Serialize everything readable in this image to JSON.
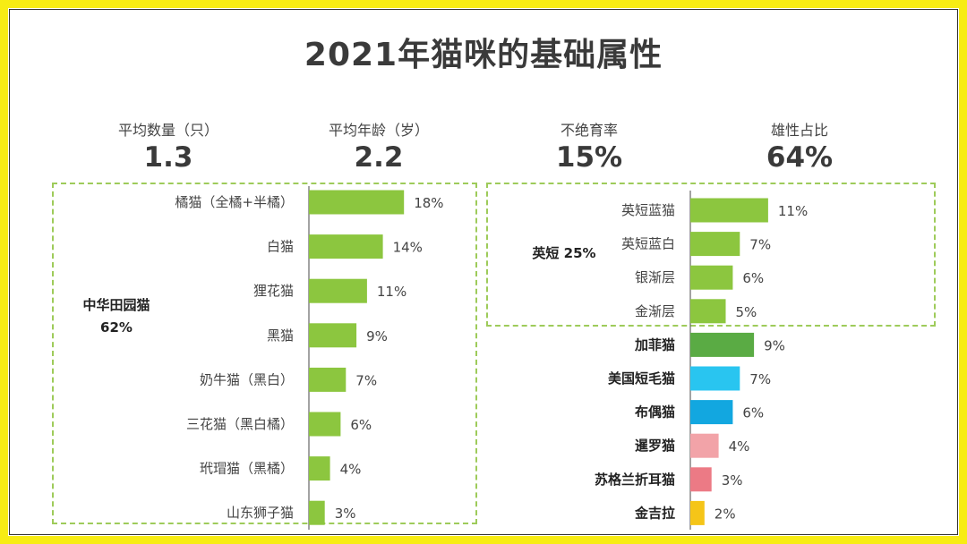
{
  "title": "2021年猫咪的基础属性",
  "stats": [
    {
      "label": "平均数量（只）",
      "value": "1.3"
    },
    {
      "label": "平均年龄（岁）",
      "value": "2.2"
    },
    {
      "label": "不绝育率",
      "value": "15%"
    },
    {
      "label": "雄性占比",
      "value": "64%"
    }
  ],
  "group_labels": {
    "left_name": "中华田园猫",
    "left_pct": "62%",
    "right_name": "英短 25%"
  },
  "colors": {
    "frame": "#f7ec14",
    "dash": "#9ecb5a",
    "green": "#8cc63f",
    "dark_green": "#5aab44",
    "light_blue": "#29c5f0",
    "blue": "#12a7e0",
    "pink": "#f2a3a8",
    "red_pink": "#ec7a85",
    "yellow": "#f5c518"
  },
  "chart_data": [
    {
      "type": "bar",
      "orientation": "horizontal",
      "group": "中华田园猫 62%",
      "categories": [
        "橘猫（全橘+半橘）",
        "白猫",
        "狸花猫",
        "黑猫",
        "奶牛猫（黑白）",
        "三花猫（黑白橘）",
        "玳瑁猫（黑橘）",
        "山东狮子猫"
      ],
      "values": [
        18,
        14,
        11,
        9,
        7,
        6,
        4,
        3
      ],
      "value_labels": [
        "18%",
        "14%",
        "11%",
        "9%",
        "7%",
        "6%",
        "4%",
        "3%"
      ],
      "bar_colors": [
        "#8cc63f",
        "#8cc63f",
        "#8cc63f",
        "#8cc63f",
        "#8cc63f",
        "#8cc63f",
        "#8cc63f",
        "#8cc63f"
      ],
      "unit": "%"
    },
    {
      "type": "bar",
      "orientation": "horizontal",
      "categories": [
        "英短蓝猫",
        "英短蓝白",
        "银渐层",
        "金渐层",
        "加菲猫",
        "美国短毛猫",
        "布偶猫",
        "暹罗猫",
        "苏格兰折耳猫",
        "金吉拉"
      ],
      "bold_categories": [
        false,
        false,
        false,
        false,
        true,
        true,
        true,
        true,
        true,
        true
      ],
      "values": [
        11,
        7,
        6,
        5,
        9,
        7,
        6,
        4,
        3,
        2
      ],
      "value_labels": [
        "11%",
        "7%",
        "6%",
        "5%",
        "9%",
        "7%",
        "6%",
        "4%",
        "3%",
        "2%"
      ],
      "bar_colors": [
        "#8cc63f",
        "#8cc63f",
        "#8cc63f",
        "#8cc63f",
        "#5aab44",
        "#29c5f0",
        "#12a7e0",
        "#f2a3a8",
        "#ec7a85",
        "#f5c518"
      ],
      "unit": "%"
    }
  ]
}
